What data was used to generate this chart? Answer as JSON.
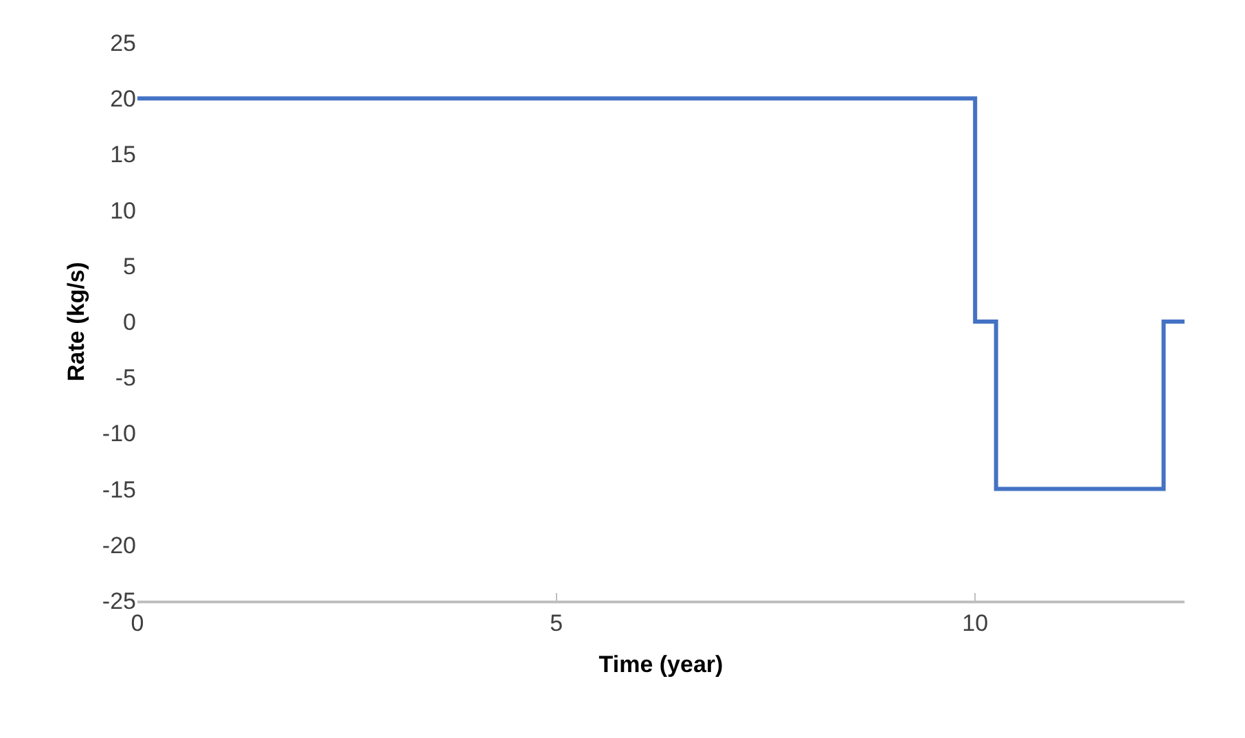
{
  "chart_data": {
    "type": "step",
    "xlabel": "Time (year)",
    "ylabel": "Rate (kg/s)",
    "x": [
      0,
      10,
      10.25,
      12.25,
      12.5
    ],
    "series": [
      {
        "color": "#4472c4",
        "values": [
          20,
          0,
          -15,
          0,
          0
        ]
      }
    ],
    "xlim": [
      0,
      12.5
    ],
    "xticks": [
      0,
      5,
      10
    ],
    "ylim": [
      -25,
      25
    ],
    "yticks": [
      -25,
      -20,
      -15,
      -10,
      -5,
      0,
      5,
      10,
      15,
      20,
      25
    ],
    "line_style": "solid",
    "marker": "none"
  }
}
